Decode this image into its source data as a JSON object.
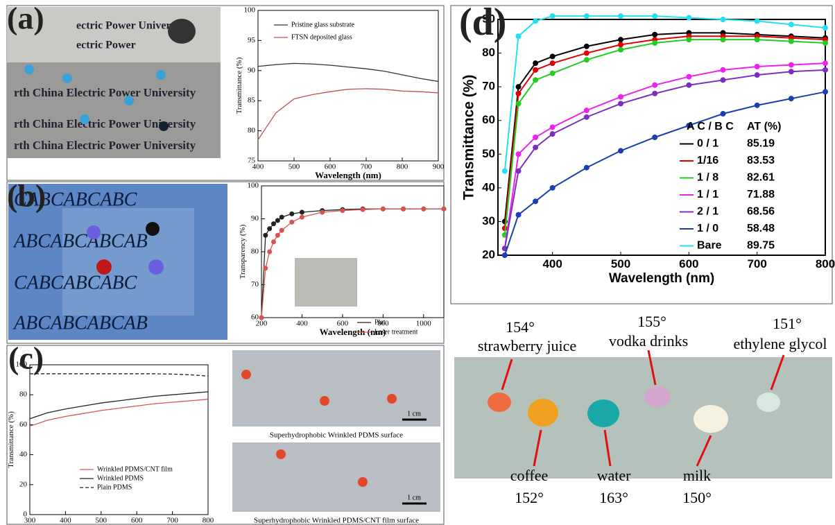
{
  "chart_data": [
    {
      "type": "line",
      "panel": "(a)",
      "xlabel": "Wavelength (nm)",
      "ylabel": "Transmittance (%)",
      "x": [
        400,
        450,
        500,
        550,
        600,
        650,
        700,
        750,
        800,
        850,
        900
      ],
      "xlim": [
        400,
        900
      ],
      "xticks": [
        400,
        500,
        600,
        700,
        800,
        900
      ],
      "ylim": [
        75,
        100
      ],
      "yticks": [
        75,
        80,
        85,
        90,
        95,
        100
      ],
      "series": [
        {
          "name": "Pristine glass substrate",
          "color": "#333333",
          "values": [
            90.7,
            91.0,
            91.2,
            91.1,
            90.9,
            90.6,
            90.3,
            89.9,
            89.3,
            88.7,
            88.2
          ]
        },
        {
          "name": "FTSN deposited glass",
          "color": "#c0504d",
          "values": [
            78.5,
            83.0,
            85.3,
            86.0,
            86.5,
            86.9,
            87.0,
            86.9,
            86.6,
            86.5,
            86.3
          ]
        }
      ]
    },
    {
      "type": "line",
      "panel": "(b)",
      "xlabel": "Wavelength (nm)",
      "ylabel": "Transparency (%)",
      "x": [
        200,
        220,
        240,
        260,
        280,
        300,
        350,
        400,
        500,
        600,
        700,
        800,
        900,
        1000,
        1100
      ],
      "xlim": [
        200,
        1100
      ],
      "xticks": [
        200,
        400,
        600,
        800,
        1000
      ],
      "ylim": [
        60,
        100
      ],
      "yticks": [
        60,
        70,
        80,
        90,
        100
      ],
      "series": [
        {
          "name": "Plat",
          "color": "#222222",
          "values": [
            60,
            85,
            87,
            88.5,
            89.5,
            90.5,
            91.5,
            92,
            92.5,
            92.8,
            93,
            93,
            93,
            93,
            93
          ]
        },
        {
          "name": "Laser treatment",
          "color": "#d9534f",
          "values": [
            60,
            75,
            80,
            83,
            85,
            86.5,
            89,
            90.5,
            92,
            92.5,
            92.8,
            93,
            93,
            93,
            93
          ]
        }
      ]
    },
    {
      "type": "line",
      "panel": "(c)",
      "xlabel": "Wavelength (nm)",
      "ylabel": "Transmittance (%)",
      "x": [
        300,
        350,
        400,
        450,
        500,
        550,
        600,
        650,
        700,
        750,
        800
      ],
      "xlim": [
        300,
        800
      ],
      "xticks": [
        300,
        400,
        500,
        600,
        700,
        800
      ],
      "ylim": [
        0,
        100
      ],
      "yticks": [
        0,
        20,
        40,
        60,
        80,
        100
      ],
      "series": [
        {
          "name": "Wrinkled PDMS/CNT film",
          "color": "#d9534f",
          "values": [
            59,
            63,
            65.5,
            67.5,
            69.5,
            71,
            72.5,
            74,
            75,
            76,
            77
          ]
        },
        {
          "name": "Wrinkled PDMS",
          "color": "#222222",
          "values": [
            64,
            68,
            70.5,
            72.5,
            74.5,
            76,
            77.5,
            79,
            80,
            81,
            82
          ]
        },
        {
          "name": "Plain PDMS",
          "color": "#222222",
          "dash": true,
          "values": [
            94,
            94,
            94,
            94,
            94,
            94,
            94,
            94,
            93.8,
            93.3,
            92.5
          ]
        }
      ]
    },
    {
      "type": "line",
      "panel": "(d)",
      "xlabel": "Wavelength (nm)",
      "ylabel": "Transmittance (%)",
      "x": [
        330,
        350,
        375,
        400,
        450,
        500,
        550,
        600,
        650,
        700,
        750,
        800
      ],
      "xlim": [
        320,
        800
      ],
      "xticks": [
        400,
        500,
        600,
        700,
        800
      ],
      "ylim": [
        20,
        90
      ],
      "yticks": [
        20,
        30,
        40,
        50,
        60,
        70,
        80,
        90
      ],
      "legend_header": [
        "A C / B C",
        "AT (%)"
      ],
      "series": [
        {
          "name": "0 / 1",
          "legend_value": 85.19,
          "color": "#000000",
          "values": [
            30,
            70,
            77,
            79,
            82,
            84,
            85.5,
            86,
            86,
            85.5,
            85,
            84.5
          ]
        },
        {
          "name": "1/16",
          "legend_value": 83.53,
          "color": "#e00000",
          "values": [
            28,
            68,
            75,
            77,
            80,
            82.5,
            84,
            85,
            85,
            85,
            84.5,
            84
          ]
        },
        {
          "name": "1 / 8",
          "legend_value": 82.61,
          "color": "#22cc22",
          "values": [
            26,
            65,
            72,
            74,
            78,
            81,
            83,
            84,
            84,
            84,
            83.5,
            83
          ]
        },
        {
          "name": "1 / 1",
          "legend_value": 71.88,
          "color": "#ee22ee",
          "values": [
            22,
            50,
            55,
            58,
            63,
            67,
            70.5,
            73,
            75,
            76,
            76.5,
            77
          ]
        },
        {
          "name": "2 / 1",
          "legend_value": 68.56,
          "color": "#7a2fc0",
          "values": [
            22,
            45,
            52,
            56,
            61,
            65,
            68,
            70.5,
            72,
            73.5,
            74.5,
            75
          ]
        },
        {
          "name": "1 / 0",
          "legend_value": 58.48,
          "color": "#1a3fb0",
          "values": [
            20,
            32,
            36,
            40,
            46,
            51,
            55,
            58.5,
            62,
            64.5,
            66.5,
            68.5
          ]
        },
        {
          "name": "Bare",
          "legend_value": 89.75,
          "color": "#22e0f0",
          "values": [
            45,
            85,
            89.5,
            91,
            91,
            91,
            91,
            90.5,
            90,
            89.5,
            88.5,
            87.5
          ]
        }
      ]
    }
  ],
  "photos": {
    "a": [
      "rth China Electric Power University",
      "ectric Power University",
      "ectric Power"
    ],
    "b": [
      "CABCABCABC",
      "ABCABCABCAB"
    ],
    "c": [
      "Superhydrophobic Wrinkled PDMS surface",
      "Superhydrophobic Wrinkled PDMS/CNT film surface",
      "1 cm"
    ],
    "d": [
      {
        "label": "strawberry juice",
        "angle": "154°"
      },
      {
        "label": "vodka drinks",
        "angle": "155°"
      },
      {
        "label": "ethylene glycol",
        "angle": "151°"
      },
      {
        "label": "coffee",
        "angle": "152°"
      },
      {
        "label": "water",
        "angle": "163°"
      },
      {
        "label": "milk",
        "angle": "150°"
      }
    ]
  }
}
